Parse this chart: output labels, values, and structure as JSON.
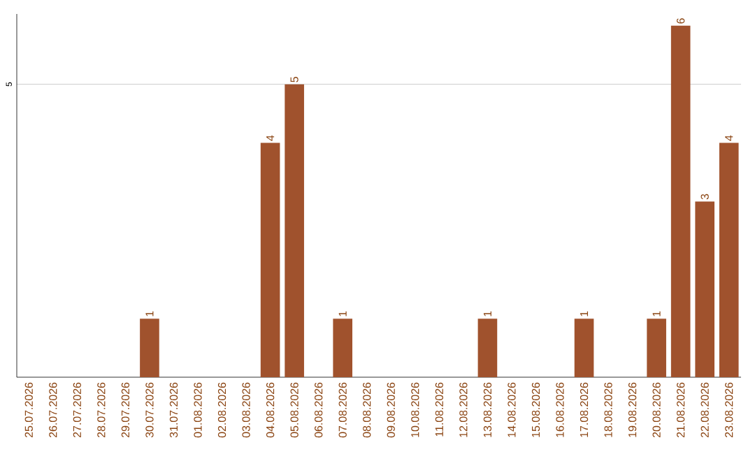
{
  "chart_data": {
    "type": "bar",
    "categories": [
      "25.07.2026",
      "26.07.2026",
      "27.07.2026",
      "28.07.2026",
      "29.07.2026",
      "30.07.2026",
      "31.07.2026",
      "01.08.2026",
      "02.08.2026",
      "03.08.2026",
      "04.08.2026",
      "05.08.2026",
      "06.08.2026",
      "07.08.2026",
      "08.08.2026",
      "09.08.2026",
      "10.08.2026",
      "11.08.2026",
      "12.08.2026",
      "13.08.2026",
      "14.08.2026",
      "15.08.2026",
      "16.08.2026",
      "17.08.2026",
      "18.08.2026",
      "19.08.2026",
      "20.08.2026",
      "21.08.2026",
      "22.08.2026",
      "23.08.2026"
    ],
    "values": [
      0,
      0,
      0,
      0,
      0,
      1,
      0,
      0,
      0,
      0,
      4,
      5,
      0,
      1,
      0,
      0,
      0,
      0,
      0,
      1,
      0,
      0,
      0,
      1,
      0,
      0,
      1,
      6,
      3,
      4
    ],
    "value_labels": [
      null,
      null,
      null,
      null,
      null,
      "1",
      null,
      null,
      null,
      null,
      "4",
      "5",
      null,
      "1",
      null,
      null,
      null,
      null,
      null,
      "1",
      null,
      null,
      null,
      "1",
      null,
      null,
      "1",
      "6",
      "3",
      "4"
    ],
    "color": "#a0522d",
    "ylim": [
      0,
      6.2
    ],
    "yticks": [
      5
    ],
    "grid": "y"
  }
}
